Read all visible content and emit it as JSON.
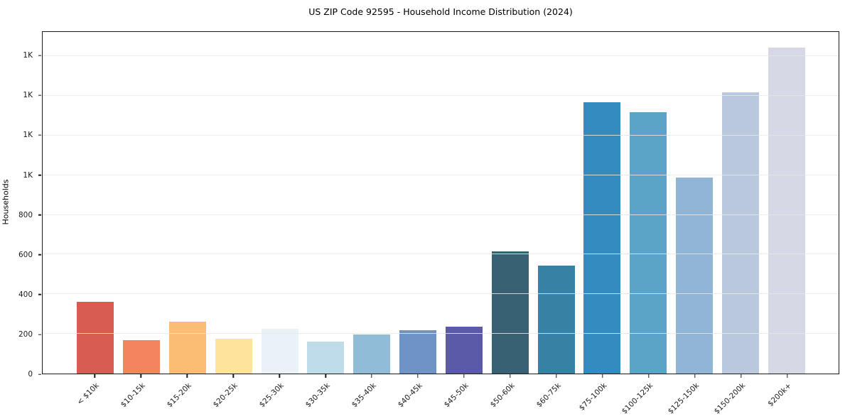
{
  "chart_data": {
    "type": "bar",
    "title": "US ZIP Code 92595 - Household Income Distribution (2024)",
    "xlabel": "",
    "ylabel": "Households",
    "categories": [
      "< $10k",
      "$10-15k",
      "$15-20k",
      "$20-25k",
      "$25-30k",
      "$30-35k",
      "$35-40k",
      "$40-45k",
      "$45-50k",
      "$50-60k",
      "$60-75k",
      "$75-100k",
      "$100-125k",
      "$125-150k",
      "$150-200k",
      "$200k+"
    ],
    "values": [
      360,
      168,
      261,
      177,
      225,
      162,
      197,
      217,
      235,
      617,
      546,
      1366,
      1319,
      987,
      1419,
      1642
    ],
    "bar_colors": [
      "#d85c52",
      "#f4845f",
      "#fbbc74",
      "#fde49a",
      "#e9f2f6",
      "#bedcea",
      "#90bcd8",
      "#6d94c5",
      "#5a5aa8",
      "#386173",
      "#3781a5",
      "#348bbd",
      "#5ba4c8",
      "#90b5d5",
      "#b9c8dc",
      "#d6d8e5"
    ],
    "yticks": [
      {
        "value": 0,
        "label": "0"
      },
      {
        "value": 200,
        "label": "200"
      },
      {
        "value": 400,
        "label": "400"
      },
      {
        "value": 600,
        "label": "600"
      },
      {
        "value": 800,
        "label": "800"
      },
      {
        "value": 1000,
        "label": "1K"
      },
      {
        "value": 1200,
        "label": "1K"
      },
      {
        "value": 1400,
        "label": "1K"
      },
      {
        "value": 1600,
        "label": "1K"
      }
    ],
    "ylim": [
      0,
      1722
    ],
    "grid": "horizontal",
    "legend": "none",
    "background_color": "#ffffff",
    "axis_color": "#1a1a1a",
    "gridline_color": "#e7e7e7"
  }
}
